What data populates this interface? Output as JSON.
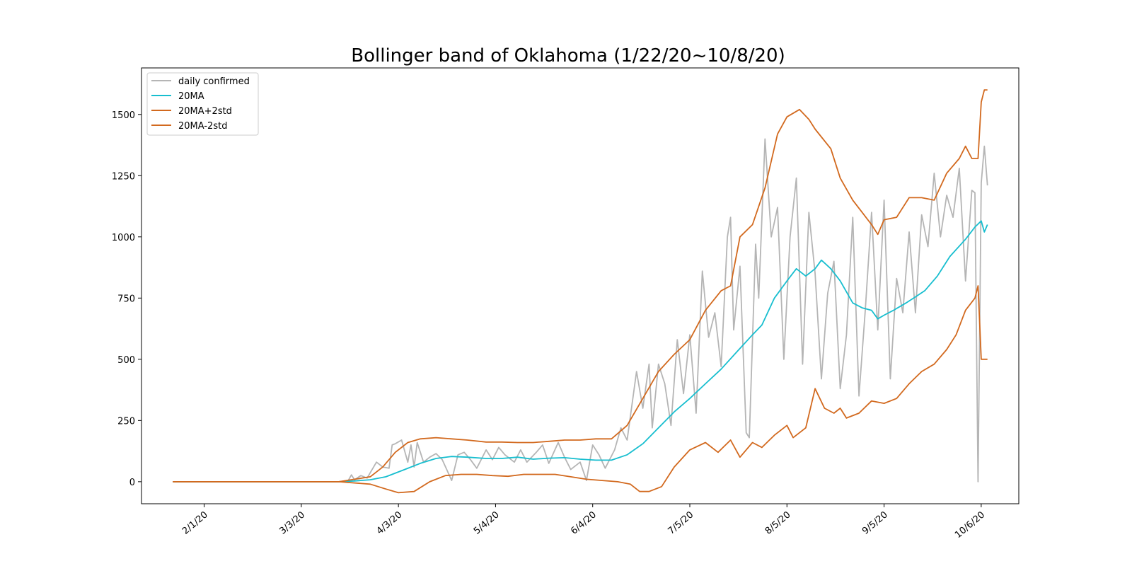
{
  "chart_data": {
    "type": "line",
    "title": "Bollinger band of Oklahoma (1/22/20~10/8/20)",
    "xlabel": "",
    "ylabel": "",
    "x_start_label": "1/22/20",
    "x_end_label": "10/8/20",
    "x_range": [
      "1/12/20",
      "10/18/20"
    ],
    "ylim": [
      -90,
      1690
    ],
    "grid": false,
    "legend_position": "top-left",
    "x_ticks": [
      "2/1/20",
      "3/3/20",
      "4/3/20",
      "5/4/20",
      "6/4/20",
      "7/5/20",
      "8/5/20",
      "9/5/20",
      "10/6/20"
    ],
    "y_ticks": [
      0,
      250,
      500,
      750,
      1000,
      1250,
      1500
    ],
    "series": [
      {
        "name": "daily confirmed",
        "color": "#b5b5b5",
        "points": [
          [
            "1/22/20",
            0
          ],
          [
            "3/15/20",
            0
          ],
          [
            "3/18/20",
            5
          ],
          [
            "3/19/20",
            28
          ],
          [
            "3/20/20",
            8
          ],
          [
            "3/22/20",
            25
          ],
          [
            "3/24/20",
            15
          ],
          [
            "3/27/20",
            80
          ],
          [
            "3/29/20",
            60
          ],
          [
            "3/31/20",
            55
          ],
          [
            "4/1/20",
            150
          ],
          [
            "4/2/20",
            155
          ],
          [
            "4/4/20",
            170
          ],
          [
            "4/6/20",
            80
          ],
          [
            "4/7/20",
            150
          ],
          [
            "4/8/20",
            60
          ],
          [
            "4/9/20",
            160
          ],
          [
            "4/11/20",
            80
          ],
          [
            "4/13/20",
            100
          ],
          [
            "4/15/20",
            115
          ],
          [
            "4/17/20",
            90
          ],
          [
            "4/20/20",
            5
          ],
          [
            "4/22/20",
            110
          ],
          [
            "4/24/20",
            120
          ],
          [
            "4/26/20",
            90
          ],
          [
            "4/28/20",
            55
          ],
          [
            "5/1/20",
            130
          ],
          [
            "5/3/20",
            90
          ],
          [
            "5/5/20",
            140
          ],
          [
            "5/7/20",
            110
          ],
          [
            "5/10/20",
            80
          ],
          [
            "5/12/20",
            130
          ],
          [
            "5/14/20",
            80
          ],
          [
            "5/17/20",
            120
          ],
          [
            "5/19/20",
            150
          ],
          [
            "5/21/20",
            75
          ],
          [
            "5/24/20",
            160
          ],
          [
            "5/26/20",
            100
          ],
          [
            "5/28/20",
            50
          ],
          [
            "5/31/20",
            80
          ],
          [
            "6/2/20",
            5
          ],
          [
            "6/4/20",
            150
          ],
          [
            "6/6/20",
            110
          ],
          [
            "6/8/20",
            55
          ],
          [
            "6/11/20",
            130
          ],
          [
            "6/13/20",
            220
          ],
          [
            "6/15/20",
            170
          ],
          [
            "6/18/20",
            450
          ],
          [
            "6/20/20",
            300
          ],
          [
            "6/22/20",
            480
          ],
          [
            "6/23/20",
            220
          ],
          [
            "6/25/20",
            480
          ],
          [
            "6/27/20",
            400
          ],
          [
            "6/29/20",
            230
          ],
          [
            "7/1/20",
            580
          ],
          [
            "7/3/20",
            360
          ],
          [
            "7/5/20",
            600
          ],
          [
            "7/7/20",
            280
          ],
          [
            "7/9/20",
            860
          ],
          [
            "7/11/20",
            590
          ],
          [
            "7/13/20",
            690
          ],
          [
            "7/15/20",
            470
          ],
          [
            "7/17/20",
            1000
          ],
          [
            "7/18/20",
            1080
          ],
          [
            "7/19/20",
            620
          ],
          [
            "7/21/20",
            880
          ],
          [
            "7/23/20",
            200
          ],
          [
            "7/24/20",
            180
          ],
          [
            "7/26/20",
            970
          ],
          [
            "7/27/20",
            750
          ],
          [
            "7/29/20",
            1400
          ],
          [
            "7/31/20",
            1000
          ],
          [
            "8/2/20",
            1120
          ],
          [
            "8/4/20",
            500
          ],
          [
            "8/6/20",
            1000
          ],
          [
            "8/8/20",
            1240
          ],
          [
            "8/10/20",
            480
          ],
          [
            "8/12/20",
            1100
          ],
          [
            "8/14/20",
            850
          ],
          [
            "8/16/20",
            420
          ],
          [
            "8/18/20",
            770
          ],
          [
            "8/20/20",
            900
          ],
          [
            "8/22/20",
            380
          ],
          [
            "8/24/20",
            600
          ],
          [
            "8/26/20",
            1080
          ],
          [
            "8/28/20",
            350
          ],
          [
            "8/30/20",
            700
          ],
          [
            "9/1/20",
            1100
          ],
          [
            "9/3/20",
            620
          ],
          [
            "9/5/20",
            1150
          ],
          [
            "9/7/20",
            420
          ],
          [
            "9/9/20",
            830
          ],
          [
            "9/11/20",
            690
          ],
          [
            "9/13/20",
            1020
          ],
          [
            "9/15/20",
            690
          ],
          [
            "9/17/20",
            1090
          ],
          [
            "9/19/20",
            960
          ],
          [
            "9/21/20",
            1260
          ],
          [
            "9/23/20",
            1000
          ],
          [
            "9/25/20",
            1170
          ],
          [
            "9/27/20",
            1080
          ],
          [
            "9/29/20",
            1280
          ],
          [
            "10/1/20",
            820
          ],
          [
            "10/3/20",
            1190
          ],
          [
            "10/4/20",
            1180
          ],
          [
            "10/5/20",
            0
          ],
          [
            "10/6/20",
            1220
          ],
          [
            "10/7/20",
            1370
          ],
          [
            "10/8/20",
            1210
          ]
        ]
      },
      {
        "name": "20MA",
        "color": "#17becf",
        "points": [
          [
            "1/22/20",
            0
          ],
          [
            "3/15/20",
            0
          ],
          [
            "3/20/20",
            3
          ],
          [
            "3/25/20",
            8
          ],
          [
            "3/30/20",
            20
          ],
          [
            "4/5/20",
            50
          ],
          [
            "4/10/20",
            75
          ],
          [
            "4/15/20",
            95
          ],
          [
            "4/20/20",
            103
          ],
          [
            "4/25/20",
            100
          ],
          [
            "5/1/20",
            95
          ],
          [
            "5/6/20",
            95
          ],
          [
            "5/11/20",
            100
          ],
          [
            "5/16/20",
            92
          ],
          [
            "5/21/20",
            96
          ],
          [
            "5/26/20",
            98
          ],
          [
            "5/31/20",
            92
          ],
          [
            "6/5/20",
            88
          ],
          [
            "6/10/20",
            88
          ],
          [
            "6/15/20",
            110
          ],
          [
            "6/20/20",
            155
          ],
          [
            "6/25/20",
            220
          ],
          [
            "6/30/20",
            285
          ],
          [
            "7/5/20",
            340
          ],
          [
            "7/10/20",
            400
          ],
          [
            "7/15/20",
            460
          ],
          [
            "7/20/20",
            530
          ],
          [
            "7/25/20",
            600
          ],
          [
            "7/28/20",
            640
          ],
          [
            "8/1/20",
            750
          ],
          [
            "8/5/20",
            820
          ],
          [
            "8/8/20",
            870
          ],
          [
            "8/11/20",
            840
          ],
          [
            "8/14/20",
            870
          ],
          [
            "8/16/20",
            905
          ],
          [
            "8/19/20",
            870
          ],
          [
            "8/22/20",
            820
          ],
          [
            "8/26/20",
            730
          ],
          [
            "8/29/20",
            710
          ],
          [
            "9/1/20",
            700
          ],
          [
            "9/3/20",
            665
          ],
          [
            "9/5/20",
            680
          ],
          [
            "9/8/20",
            700
          ],
          [
            "9/12/20",
            730
          ],
          [
            "9/15/20",
            755
          ],
          [
            "9/18/20",
            780
          ],
          [
            "9/22/20",
            840
          ],
          [
            "9/26/20",
            920
          ],
          [
            "10/1/20",
            990
          ],
          [
            "10/4/20",
            1040
          ],
          [
            "10/6/20",
            1065
          ],
          [
            "10/7/20",
            1020
          ],
          [
            "10/8/20",
            1050
          ]
        ]
      },
      {
        "name": "20MA+2std",
        "color": "#d2691e",
        "points": [
          [
            "1/22/20",
            0
          ],
          [
            "3/15/20",
            0
          ],
          [
            "3/20/20",
            10
          ],
          [
            "3/25/20",
            20
          ],
          [
            "3/29/20",
            60
          ],
          [
            "4/2/20",
            120
          ],
          [
            "4/6/20",
            160
          ],
          [
            "4/10/20",
            175
          ],
          [
            "4/15/20",
            180
          ],
          [
            "4/20/20",
            175
          ],
          [
            "4/25/20",
            170
          ],
          [
            "5/1/20",
            162
          ],
          [
            "5/6/20",
            162
          ],
          [
            "5/11/20",
            160
          ],
          [
            "5/16/20",
            160
          ],
          [
            "5/21/20",
            165
          ],
          [
            "5/26/20",
            170
          ],
          [
            "5/31/20",
            170
          ],
          [
            "6/5/20",
            175
          ],
          [
            "6/10/20",
            175
          ],
          [
            "6/15/20",
            230
          ],
          [
            "6/20/20",
            340
          ],
          [
            "6/25/20",
            450
          ],
          [
            "6/30/20",
            520
          ],
          [
            "7/5/20",
            580
          ],
          [
            "7/10/20",
            700
          ],
          [
            "7/15/20",
            780
          ],
          [
            "7/18/20",
            800
          ],
          [
            "7/21/20",
            1000
          ],
          [
            "7/25/20",
            1050
          ],
          [
            "7/29/20",
            1200
          ],
          [
            "8/2/20",
            1420
          ],
          [
            "8/5/20",
            1490
          ],
          [
            "8/9/20",
            1520
          ],
          [
            "8/12/20",
            1480
          ],
          [
            "8/14/20",
            1440
          ],
          [
            "8/19/20",
            1360
          ],
          [
            "8/22/20",
            1240
          ],
          [
            "8/26/20",
            1150
          ],
          [
            "8/29/20",
            1100
          ],
          [
            "9/1/20",
            1050
          ],
          [
            "9/3/20",
            1010
          ],
          [
            "9/5/20",
            1070
          ],
          [
            "9/9/20",
            1080
          ],
          [
            "9/13/20",
            1160
          ],
          [
            "9/17/20",
            1160
          ],
          [
            "9/21/20",
            1150
          ],
          [
            "9/25/20",
            1260
          ],
          [
            "9/29/20",
            1320
          ],
          [
            "10/1/20",
            1370
          ],
          [
            "10/3/20",
            1320
          ],
          [
            "10/5/20",
            1320
          ],
          [
            "10/6/20",
            1550
          ],
          [
            "10/7/20",
            1600
          ],
          [
            "10/8/20",
            1600
          ]
        ]
      },
      {
        "name": "20MA-2std",
        "color": "#d2691e",
        "points": [
          [
            "1/22/20",
            0
          ],
          [
            "3/15/20",
            0
          ],
          [
            "3/20/20",
            -5
          ],
          [
            "3/25/20",
            -10
          ],
          [
            "3/30/20",
            -30
          ],
          [
            "4/3/20",
            -45
          ],
          [
            "4/8/20",
            -40
          ],
          [
            "4/13/20",
            0
          ],
          [
            "4/18/20",
            25
          ],
          [
            "4/23/20",
            30
          ],
          [
            "4/28/20",
            30
          ],
          [
            "5/3/20",
            25
          ],
          [
            "5/8/20",
            22
          ],
          [
            "5/13/20",
            30
          ],
          [
            "5/18/20",
            30
          ],
          [
            "5/23/20",
            30
          ],
          [
            "5/28/20",
            20
          ],
          [
            "6/2/20",
            10
          ],
          [
            "6/7/20",
            5
          ],
          [
            "6/12/20",
            0
          ],
          [
            "6/16/20",
            -10
          ],
          [
            "6/19/20",
            -40
          ],
          [
            "6/22/20",
            -40
          ],
          [
            "6/26/20",
            -20
          ],
          [
            "6/30/20",
            60
          ],
          [
            "7/5/20",
            130
          ],
          [
            "7/10/20",
            160
          ],
          [
            "7/14/20",
            120
          ],
          [
            "7/18/20",
            170
          ],
          [
            "7/21/20",
            100
          ],
          [
            "7/25/20",
            160
          ],
          [
            "7/28/20",
            140
          ],
          [
            "8/1/20",
            190
          ],
          [
            "8/5/20",
            230
          ],
          [
            "8/7/20",
            180
          ],
          [
            "8/11/20",
            220
          ],
          [
            "8/14/20",
            380
          ],
          [
            "8/17/20",
            300
          ],
          [
            "8/20/20",
            280
          ],
          [
            "8/22/20",
            300
          ],
          [
            "8/24/20",
            260
          ],
          [
            "8/28/20",
            280
          ],
          [
            "9/1/20",
            330
          ],
          [
            "9/5/20",
            320
          ],
          [
            "9/9/20",
            340
          ],
          [
            "9/13/20",
            400
          ],
          [
            "9/17/20",
            450
          ],
          [
            "9/21/20",
            480
          ],
          [
            "9/25/20",
            540
          ],
          [
            "9/28/20",
            600
          ],
          [
            "10/1/20",
            700
          ],
          [
            "10/4/20",
            750
          ],
          [
            "10/5/20",
            800
          ],
          [
            "10/6/20",
            500
          ],
          [
            "10/8/20",
            500
          ]
        ]
      }
    ]
  }
}
